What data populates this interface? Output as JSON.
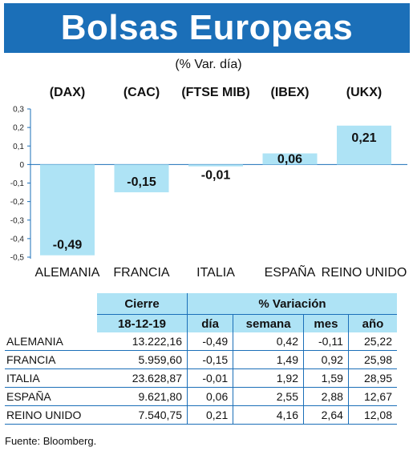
{
  "title": "Bolsas Europeas",
  "subtitle": "(% Var. día)",
  "chart_data": {
    "type": "bar",
    "title": "Bolsas Europeas",
    "subtitle": "(% Var. día)",
    "categories": [
      "ALEMANIA",
      "FRANCIA",
      "ITALIA",
      "ESPAÑA",
      "REINO UNIDO"
    ],
    "indices": [
      "(DAX)",
      "(CAC)",
      "(FTSE MIB)",
      "(IBEX)",
      "(UKX)"
    ],
    "values": [
      -0.49,
      -0.15,
      -0.01,
      0.06,
      0.21
    ],
    "value_labels": [
      "-0,49",
      "-0,15",
      "-0,01",
      "0,06",
      "0,21"
    ],
    "ylim": [
      -0.5,
      0.3
    ],
    "yticks": [
      "0,3",
      "0,2",
      "0,1",
      "0",
      "-0,1",
      "-0,2",
      "-0,3",
      "-0,4",
      "-0,5"
    ],
    "ytick_values": [
      0.3,
      0.2,
      0.1,
      0,
      -0.1,
      -0.2,
      -0.3,
      -0.4,
      -0.5
    ],
    "bar_color": "#aee3f5",
    "axis_color": "#1b6fb8",
    "grid": false
  },
  "table": {
    "group_headers": {
      "cierre": "Cierre",
      "variacion": "% Variación"
    },
    "sub_headers": {
      "date": "18-12-19",
      "dia": "día",
      "semana": "semana",
      "mes": "mes",
      "ano": "año"
    },
    "rows": [
      {
        "country": "ALEMANIA",
        "cierre": "13.222,16",
        "dia": "-0,49",
        "semana": "0,42",
        "mes": "-0,11",
        "ano": "25,22"
      },
      {
        "country": "FRANCIA",
        "cierre": "5.959,60",
        "dia": "-0,15",
        "semana": "1,49",
        "mes": "0,92",
        "ano": "25,98"
      },
      {
        "country": "ITALIA",
        "cierre": "23.628,87",
        "dia": "-0,01",
        "semana": "1,92",
        "mes": "1,59",
        "ano": "28,95"
      },
      {
        "country": "ESPAÑA",
        "cierre": "9.621,80",
        "dia": "0,06",
        "semana": "2,55",
        "mes": "2,88",
        "ano": "12,67"
      },
      {
        "country": "REINO UNIDO",
        "cierre": "7.540,75",
        "dia": "0,21",
        "semana": "4,16",
        "mes": "2,64",
        "ano": "12,08"
      }
    ]
  },
  "source": "Fuente: Bloomberg.",
  "colors": {
    "banner": "#1b6fb8",
    "accent": "#aee3f5"
  }
}
